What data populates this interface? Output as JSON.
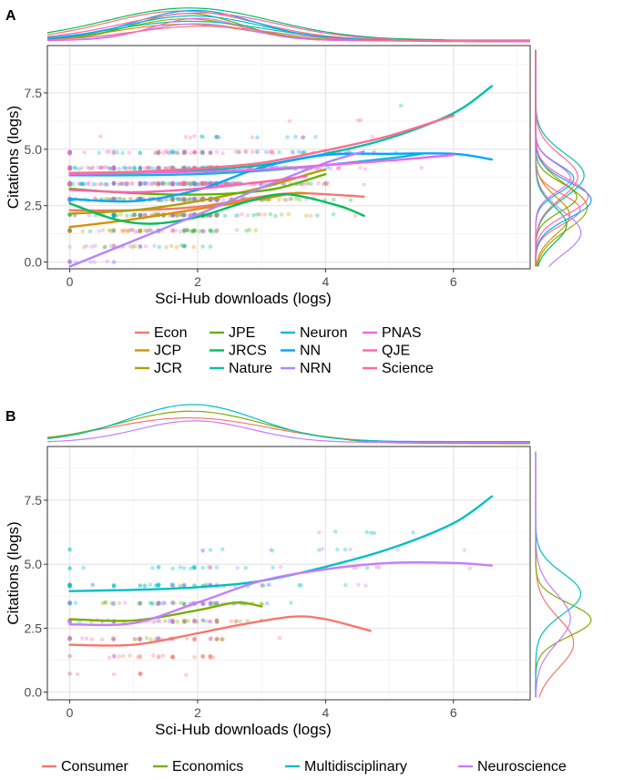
{
  "chart_data": [
    {
      "panel_label": "A",
      "type": "scatter",
      "xlabel": "Sci-Hub downloads (logs)",
      "ylabel": "Citations (logs)",
      "xlim": [
        -0.35,
        7.2
      ],
      "ylim": [
        -0.3,
        9.6
      ],
      "x_ticks": [
        0,
        2,
        4,
        6
      ],
      "x_tick_labels": [
        "0",
        "2",
        "4",
        "6"
      ],
      "y_ticks": [
        0,
        2.5,
        5,
        7.5
      ],
      "y_tick_labels": [
        "0.0",
        "2.5",
        "5.0",
        "7.5"
      ],
      "grid": true,
      "legend_position": "bottom",
      "series": [
        {
          "name": "Econ",
          "color": "#F8766D",
          "smooth": [
            [
              0,
              2.3
            ],
            [
              1,
              2.3
            ],
            [
              2,
              2.45
            ],
            [
              3,
              2.9
            ],
            [
              3.6,
              3.05
            ],
            [
              4.6,
              2.9
            ]
          ]
        },
        {
          "name": "JCP",
          "color": "#DB8E00",
          "smooth": [
            [
              0,
              1.55
            ],
            [
              1,
              1.9
            ],
            [
              2,
              2.35
            ],
            [
              3,
              2.8
            ],
            [
              3.5,
              3.05
            ],
            [
              3.7,
              3.05
            ]
          ]
        },
        {
          "name": "JCR",
          "color": "#AEA200",
          "smooth": [
            [
              0,
              2.15
            ],
            [
              1,
              2.3
            ],
            [
              2,
              2.7
            ],
            [
              3,
              3.3
            ],
            [
              3.8,
              3.95
            ],
            [
              4,
              4.1
            ]
          ]
        },
        {
          "name": "JPE",
          "color": "#64B200",
          "smooth": [
            [
              0,
              3.25
            ],
            [
              0.7,
              3.1
            ],
            [
              1.5,
              3.0
            ],
            [
              2.2,
              3.0
            ],
            [
              2.8,
              3.1
            ],
            [
              3.3,
              3.3
            ],
            [
              4,
              3.9
            ]
          ]
        },
        {
          "name": "JRCS",
          "color": "#00BD5C",
          "smooth": [
            [
              0,
              2.6
            ],
            [
              0.7,
              1.9
            ],
            [
              1.3,
              1.7
            ],
            [
              2,
              2.0
            ],
            [
              2.8,
              2.7
            ],
            [
              3.4,
              3.0
            ],
            [
              4.2,
              2.5
            ],
            [
              4.6,
              2.05
            ]
          ]
        },
        {
          "name": "Nature",
          "color": "#00C1A7",
          "smooth": [
            [
              0,
              3.9
            ],
            [
              1,
              3.95
            ],
            [
              2,
              4.05
            ],
            [
              3,
              4.3
            ],
            [
              4,
              4.8
            ],
            [
              5,
              5.5
            ],
            [
              6,
              6.6
            ],
            [
              6.6,
              7.8
            ]
          ]
        },
        {
          "name": "Neuron",
          "color": "#00BADE",
          "smooth": [
            [
              0,
              3.85
            ],
            [
              1,
              3.85
            ],
            [
              2,
              3.9
            ],
            [
              3,
              4.05
            ],
            [
              4,
              4.3
            ],
            [
              5,
              4.6
            ],
            [
              5.5,
              4.8
            ]
          ]
        },
        {
          "name": "NN",
          "color": "#00A6FF",
          "smooth": [
            [
              0,
              2.8
            ],
            [
              1,
              2.7
            ],
            [
              2,
              3.2
            ],
            [
              3,
              4.2
            ],
            [
              4,
              4.75
            ],
            [
              5,
              4.8
            ],
            [
              6,
              4.8
            ],
            [
              6.6,
              4.55
            ]
          ]
        },
        {
          "name": "NRN",
          "color": "#B385FF",
          "smooth": [
            [
              0,
              -0.2
            ],
            [
              1,
              0.95
            ],
            [
              2,
              2.1
            ],
            [
              3,
              3.3
            ],
            [
              4,
              4.4
            ],
            [
              4.6,
              4.9
            ]
          ]
        },
        {
          "name": "PNAS",
          "color": "#EF67EB",
          "smooth": [
            [
              0,
              3.9
            ],
            [
              1,
              3.95
            ],
            [
              2,
              4.0
            ],
            [
              3,
              4.1
            ],
            [
              4,
              4.3
            ],
            [
              5,
              4.5
            ],
            [
              6,
              4.75
            ]
          ]
        },
        {
          "name": "QJE",
          "color": "#FF63B6",
          "smooth": [
            [
              0,
              3.2
            ],
            [
              1,
              3.1
            ],
            [
              2,
              3.25
            ],
            [
              3,
              3.55
            ],
            [
              3.7,
              3.8
            ]
          ]
        },
        {
          "name": "Science",
          "color": "#FF6C91",
          "smooth": [
            [
              0,
              3.95
            ],
            [
              1,
              4.0
            ],
            [
              2,
              4.15
            ],
            [
              3,
              4.4
            ],
            [
              4,
              4.95
            ],
            [
              5,
              5.6
            ],
            [
              6,
              6.5
            ]
          ]
        }
      ]
    },
    {
      "panel_label": "B",
      "type": "scatter",
      "xlabel": "Sci-Hub downloads (logs)",
      "ylabel": "Citations (logs)",
      "xlim": [
        -0.35,
        7.2
      ],
      "ylim": [
        -0.3,
        9.6
      ],
      "x_ticks": [
        0,
        2,
        4,
        6
      ],
      "x_tick_labels": [
        "0",
        "2",
        "4",
        "6"
      ],
      "y_ticks": [
        0,
        2.5,
        5,
        7.5
      ],
      "y_tick_labels": [
        "0.0",
        "2.5",
        "5.0",
        "7.5"
      ],
      "grid": true,
      "legend_position": "bottom",
      "series": [
        {
          "name": "Consumer",
          "color": "#F8766D",
          "smooth": [
            [
              0,
              1.85
            ],
            [
              1,
              1.85
            ],
            [
              2,
              2.3
            ],
            [
              2.7,
              2.65
            ],
            [
              3.5,
              2.95
            ],
            [
              4,
              2.85
            ],
            [
              4.7,
              2.4
            ]
          ]
        },
        {
          "name": "Economics",
          "color": "#7CAE00",
          "smooth": [
            [
              0,
              2.85
            ],
            [
              1,
              2.8
            ],
            [
              2,
              3.2
            ],
            [
              2.6,
              3.5
            ],
            [
              3,
              3.35
            ]
          ]
        },
        {
          "name": "Multidisciplinary",
          "color": "#00BFC4",
          "smooth": [
            [
              0,
              3.95
            ],
            [
              1,
              4.0
            ],
            [
              2,
              4.1
            ],
            [
              3,
              4.35
            ],
            [
              4,
              4.9
            ],
            [
              5,
              5.6
            ],
            [
              6,
              6.6
            ],
            [
              6.6,
              7.65
            ]
          ]
        },
        {
          "name": "Neuroscience",
          "color": "#C77CFF",
          "smooth": [
            [
              0,
              2.65
            ],
            [
              1,
              2.7
            ],
            [
              2,
              3.5
            ],
            [
              3,
              4.35
            ],
            [
              4,
              4.8
            ],
            [
              5,
              5.05
            ],
            [
              6,
              5.05
            ],
            [
              6.6,
              4.95
            ]
          ]
        }
      ]
    }
  ]
}
